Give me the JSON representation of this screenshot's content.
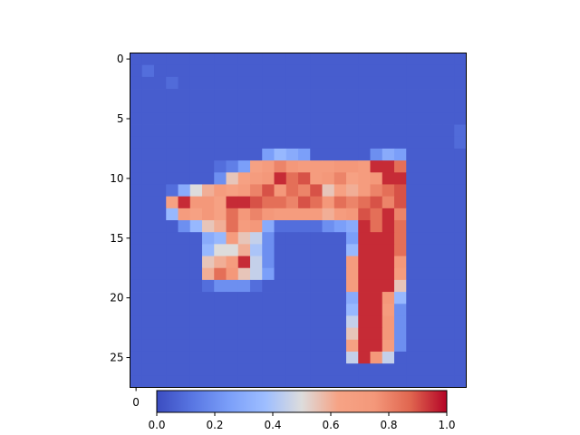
{
  "chart_data": {
    "type": "heatmap",
    "colormap": "coolwarm",
    "rows": 28,
    "cols": 28,
    "x_ticks": [
      "0"
    ],
    "y_ticks": [
      "0",
      "5",
      "10",
      "15",
      "20",
      "25"
    ],
    "colorbar": {
      "range": [
        0,
        1
      ],
      "ticks": [
        "0.0",
        "0.2",
        "0.4",
        "0.6",
        "0.8",
        "1.0"
      ]
    },
    "background_value": 0.05,
    "values": [
      [
        0.05,
        0.05,
        0.05,
        0.05,
        0.05,
        0.05,
        0.05,
        0.05,
        0.05,
        0.05,
        0.05,
        0.05,
        0.05,
        0.05,
        0.05,
        0.05,
        0.05,
        0.05,
        0.05,
        0.05,
        0.05,
        0.05,
        0.05,
        0.05,
        0.05,
        0.05,
        0.05,
        0.05
      ],
      [
        0.05,
        0.1,
        0.05,
        0.05,
        0.05,
        0.05,
        0.05,
        0.05,
        0.05,
        0.05,
        0.05,
        0.05,
        0.05,
        0.05,
        0.05,
        0.05,
        0.05,
        0.05,
        0.05,
        0.05,
        0.05,
        0.05,
        0.05,
        0.05,
        0.05,
        0.05,
        0.05,
        0.05
      ],
      [
        0.05,
        0.05,
        0.05,
        0.09,
        0.05,
        0.05,
        0.05,
        0.05,
        0.05,
        0.05,
        0.05,
        0.05,
        0.05,
        0.05,
        0.05,
        0.05,
        0.05,
        0.05,
        0.05,
        0.05,
        0.05,
        0.05,
        0.05,
        0.05,
        0.05,
        0.05,
        0.05,
        0.05
      ],
      [
        0.05,
        0.05,
        0.05,
        0.05,
        0.05,
        0.05,
        0.05,
        0.05,
        0.05,
        0.05,
        0.05,
        0.05,
        0.05,
        0.05,
        0.05,
        0.05,
        0.05,
        0.05,
        0.05,
        0.05,
        0.05,
        0.05,
        0.05,
        0.05,
        0.05,
        0.05,
        0.05,
        0.05
      ],
      [
        0.05,
        0.05,
        0.05,
        0.05,
        0.05,
        0.05,
        0.05,
        0.05,
        0.05,
        0.05,
        0.05,
        0.05,
        0.05,
        0.05,
        0.05,
        0.05,
        0.05,
        0.05,
        0.05,
        0.05,
        0.05,
        0.05,
        0.05,
        0.05,
        0.05,
        0.05,
        0.05,
        0.05
      ],
      [
        0.05,
        0.05,
        0.05,
        0.05,
        0.05,
        0.05,
        0.05,
        0.05,
        0.05,
        0.05,
        0.05,
        0.05,
        0.05,
        0.05,
        0.05,
        0.05,
        0.05,
        0.05,
        0.05,
        0.05,
        0.05,
        0.05,
        0.05,
        0.05,
        0.05,
        0.05,
        0.05,
        0.05
      ],
      [
        0.05,
        0.05,
        0.05,
        0.05,
        0.05,
        0.05,
        0.05,
        0.05,
        0.05,
        0.05,
        0.05,
        0.05,
        0.05,
        0.05,
        0.05,
        0.05,
        0.05,
        0.05,
        0.05,
        0.05,
        0.05,
        0.05,
        0.05,
        0.05,
        0.05,
        0.05,
        0.05,
        0.09
      ],
      [
        0.05,
        0.05,
        0.05,
        0.05,
        0.05,
        0.05,
        0.05,
        0.05,
        0.05,
        0.05,
        0.05,
        0.05,
        0.05,
        0.05,
        0.05,
        0.05,
        0.05,
        0.05,
        0.05,
        0.05,
        0.05,
        0.05,
        0.05,
        0.05,
        0.05,
        0.05,
        0.05,
        0.09
      ],
      [
        0.05,
        0.05,
        0.05,
        0.05,
        0.05,
        0.05,
        0.05,
        0.05,
        0.05,
        0.05,
        0.05,
        0.25,
        0.35,
        0.3,
        0.25,
        0.05,
        0.05,
        0.05,
        0.05,
        0.05,
        0.2,
        0.3,
        0.25,
        0.05,
        0.05,
        0.05,
        0.05,
        0.05
      ],
      [
        0.05,
        0.05,
        0.05,
        0.05,
        0.05,
        0.05,
        0.05,
        0.1,
        0.15,
        0.25,
        0.65,
        0.7,
        0.8,
        0.75,
        0.7,
        0.7,
        0.7,
        0.75,
        0.75,
        0.7,
        0.95,
        0.95,
        0.85,
        0.05,
        0.05,
        0.05,
        0.05,
        0.05
      ],
      [
        0.05,
        0.05,
        0.05,
        0.05,
        0.05,
        0.05,
        0.05,
        0.2,
        0.55,
        0.65,
        0.7,
        0.75,
        0.95,
        0.85,
        0.9,
        0.7,
        0.75,
        0.8,
        0.65,
        0.7,
        0.75,
        0.95,
        0.95,
        0.05,
        0.05,
        0.05,
        0.05,
        0.05
      ],
      [
        0.05,
        0.05,
        0.05,
        0.1,
        0.3,
        0.5,
        0.6,
        0.7,
        0.65,
        0.7,
        0.8,
        0.9,
        0.75,
        0.85,
        0.8,
        0.9,
        0.55,
        0.65,
        0.6,
        0.7,
        0.8,
        0.85,
        0.9,
        0.05,
        0.05,
        0.05,
        0.05,
        0.05
      ],
      [
        0.05,
        0.05,
        0.05,
        0.65,
        0.95,
        0.75,
        0.75,
        0.65,
        0.95,
        0.95,
        0.9,
        0.85,
        0.85,
        0.8,
        0.9,
        0.85,
        0.75,
        0.85,
        0.8,
        0.85,
        0.9,
        0.8,
        0.9,
        0.05,
        0.05,
        0.05,
        0.05,
        0.05
      ],
      [
        0.05,
        0.05,
        0.05,
        0.35,
        0.7,
        0.65,
        0.75,
        0.65,
        0.85,
        0.75,
        0.8,
        0.75,
        0.7,
        0.7,
        0.7,
        0.7,
        0.6,
        0.7,
        0.75,
        0.9,
        0.85,
        0.95,
        0.8,
        0.05,
        0.05,
        0.05,
        0.05,
        0.05
      ],
      [
        0.05,
        0.05,
        0.05,
        0.05,
        0.2,
        0.35,
        0.55,
        0.6,
        0.85,
        0.7,
        0.75,
        0.3,
        0.1,
        0.1,
        0.1,
        0.1,
        0.2,
        0.25,
        0.3,
        0.95,
        0.85,
        0.95,
        0.85,
        0.05,
        0.05,
        0.05,
        0.05,
        0.05
      ],
      [
        0.05,
        0.05,
        0.05,
        0.05,
        0.05,
        0.05,
        0.3,
        0.35,
        0.7,
        0.55,
        0.45,
        0.2,
        0.05,
        0.05,
        0.05,
        0.05,
        0.05,
        0.05,
        0.25,
        0.95,
        0.95,
        0.95,
        0.85,
        0.05,
        0.05,
        0.05,
        0.05,
        0.05
      ],
      [
        0.05,
        0.05,
        0.05,
        0.05,
        0.05,
        0.05,
        0.35,
        0.5,
        0.5,
        0.6,
        0.4,
        0.2,
        0.05,
        0.05,
        0.05,
        0.05,
        0.05,
        0.05,
        0.35,
        0.95,
        0.95,
        0.95,
        0.85,
        0.05,
        0.05,
        0.05,
        0.05,
        0.05
      ],
      [
        0.05,
        0.05,
        0.05,
        0.05,
        0.05,
        0.05,
        0.55,
        0.6,
        0.7,
        0.95,
        0.45,
        0.2,
        0.05,
        0.05,
        0.05,
        0.05,
        0.05,
        0.05,
        0.7,
        0.95,
        0.95,
        0.95,
        0.75,
        0.05,
        0.05,
        0.05,
        0.05,
        0.05
      ],
      [
        0.05,
        0.05,
        0.05,
        0.05,
        0.05,
        0.05,
        0.6,
        0.85,
        0.75,
        0.55,
        0.45,
        0.25,
        0.05,
        0.05,
        0.05,
        0.05,
        0.05,
        0.05,
        0.7,
        0.95,
        0.95,
        0.95,
        0.7,
        0.05,
        0.05,
        0.05,
        0.05,
        0.05
      ],
      [
        0.05,
        0.05,
        0.05,
        0.05,
        0.05,
        0.05,
        0.1,
        0.2,
        0.2,
        0.2,
        0.1,
        0.05,
        0.05,
        0.05,
        0.05,
        0.05,
        0.05,
        0.05,
        0.7,
        0.95,
        0.95,
        0.95,
        0.55,
        0.05,
        0.05,
        0.05,
        0.05,
        0.05
      ],
      [
        0.05,
        0.05,
        0.05,
        0.05,
        0.05,
        0.05,
        0.05,
        0.05,
        0.05,
        0.05,
        0.05,
        0.05,
        0.05,
        0.05,
        0.05,
        0.05,
        0.05,
        0.05,
        0.3,
        0.95,
        0.95,
        0.75,
        0.35,
        0.05,
        0.05,
        0.05,
        0.05,
        0.05
      ],
      [
        0.05,
        0.05,
        0.05,
        0.05,
        0.05,
        0.05,
        0.05,
        0.05,
        0.05,
        0.05,
        0.05,
        0.05,
        0.05,
        0.05,
        0.05,
        0.05,
        0.05,
        0.05,
        0.35,
        0.95,
        0.95,
        0.7,
        0.2,
        0.05,
        0.05,
        0.05,
        0.05,
        0.05
      ],
      [
        0.05,
        0.05,
        0.05,
        0.05,
        0.05,
        0.05,
        0.05,
        0.05,
        0.05,
        0.05,
        0.05,
        0.05,
        0.05,
        0.05,
        0.05,
        0.05,
        0.05,
        0.05,
        0.45,
        0.95,
        0.95,
        0.75,
        0.2,
        0.05,
        0.05,
        0.05,
        0.05,
        0.05
      ],
      [
        0.05,
        0.05,
        0.05,
        0.05,
        0.05,
        0.05,
        0.05,
        0.05,
        0.05,
        0.05,
        0.05,
        0.05,
        0.05,
        0.05,
        0.05,
        0.05,
        0.05,
        0.05,
        0.55,
        0.95,
        0.95,
        0.75,
        0.2,
        0.05,
        0.05,
        0.05,
        0.05,
        0.05
      ],
      [
        0.05,
        0.05,
        0.05,
        0.05,
        0.05,
        0.05,
        0.05,
        0.05,
        0.05,
        0.05,
        0.05,
        0.05,
        0.05,
        0.05,
        0.05,
        0.05,
        0.05,
        0.05,
        0.65,
        0.95,
        0.95,
        0.7,
        0.2,
        0.05,
        0.05,
        0.05,
        0.05,
        0.05
      ],
      [
        0.05,
        0.05,
        0.05,
        0.05,
        0.05,
        0.05,
        0.05,
        0.05,
        0.05,
        0.05,
        0.05,
        0.05,
        0.05,
        0.05,
        0.05,
        0.05,
        0.05,
        0.05,
        0.45,
        0.95,
        0.75,
        0.45,
        0.05,
        0.05,
        0.05,
        0.05,
        0.05,
        0.05
      ],
      [
        0.05,
        0.05,
        0.05,
        0.05,
        0.05,
        0.05,
        0.05,
        0.05,
        0.05,
        0.05,
        0.05,
        0.05,
        0.05,
        0.05,
        0.05,
        0.05,
        0.05,
        0.05,
        0.05,
        0.05,
        0.05,
        0.05,
        0.05,
        0.05,
        0.05,
        0.05,
        0.05,
        0.05
      ],
      [
        0.05,
        0.05,
        0.05,
        0.05,
        0.05,
        0.05,
        0.05,
        0.05,
        0.05,
        0.05,
        0.05,
        0.05,
        0.05,
        0.05,
        0.05,
        0.05,
        0.05,
        0.05,
        0.05,
        0.05,
        0.05,
        0.05,
        0.05,
        0.05,
        0.05,
        0.05,
        0.05,
        0.05
      ]
    ]
  }
}
